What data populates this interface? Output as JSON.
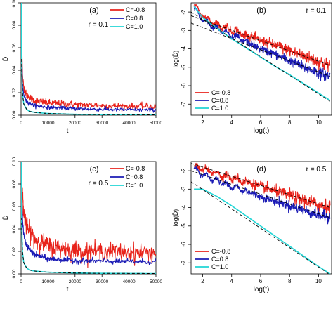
{
  "chart_data": [
    {
      "id": "a",
      "type": "line",
      "panel_label": "(a)",
      "annotation": "r = 0.1",
      "xlabel": "t",
      "ylabel": "D̄",
      "scale": "linear",
      "xlim": [
        0,
        50000
      ],
      "ylim": [
        0,
        0.1
      ],
      "x_ticks": [
        0,
        10000,
        20000,
        30000,
        40000,
        50000
      ],
      "x_tick_labels": [
        "0",
        "10000",
        "20000",
        "30000",
        "40000",
        "50000"
      ],
      "y_ticks": [
        0.0,
        0.02,
        0.04,
        0.06,
        0.08,
        0.1
      ],
      "y_tick_labels": [
        "0.00",
        "0.02",
        "0.04",
        "0.06",
        "0.08",
        "0.10"
      ],
      "legend_position": "top-right",
      "series": [
        {
          "name": "C=-0.8",
          "color": "#e8231b",
          "noise": 0.0015,
          "x": [
            100,
            500,
            1000,
            2000,
            5000,
            10000,
            20000,
            30000,
            40000,
            50000
          ],
          "y": [
            0.1,
            0.036,
            0.025,
            0.018,
            0.013,
            0.011,
            0.0095,
            0.0085,
            0.008,
            0.0075
          ]
        },
        {
          "name": "C=0.8",
          "color": "#1b1bb5",
          "noise": 0.0008,
          "x": [
            100,
            500,
            1000,
            2000,
            5000,
            10000,
            20000,
            30000,
            40000,
            50000
          ],
          "y": [
            0.1,
            0.028,
            0.018,
            0.012,
            0.0085,
            0.007,
            0.0058,
            0.0052,
            0.0048,
            0.0045
          ]
        },
        {
          "name": "C=1.0",
          "color": "#20d5d5",
          "noise": 0,
          "x": [
            50,
            200,
            500,
            1000,
            2000,
            3000,
            5000,
            10000,
            20000,
            30000,
            50000
          ],
          "y": [
            0.1,
            0.05,
            0.02,
            0.01,
            0.0055,
            0.0035,
            0.0025,
            0.0015,
            0.0008,
            0.0005,
            0.0003
          ]
        }
      ],
      "fit_lines": []
    },
    {
      "id": "b",
      "type": "line",
      "panel_label": "(b)",
      "annotation": "r = 0.1",
      "xlabel": "log(t)",
      "ylabel": "log(D̄)",
      "scale": "log-log",
      "xlim": [
        1.2,
        10.9
      ],
      "ylim": [
        -7.6,
        -1.5
      ],
      "x_ticks": [
        2,
        4,
        6,
        8,
        10
      ],
      "x_tick_labels": [
        "2",
        "4",
        "6",
        "8",
        "10"
      ],
      "y_ticks": [
        -7,
        -6,
        -5,
        -4,
        -3,
        -2
      ],
      "y_tick_labels": [
        "-7",
        "-6",
        "-5",
        "-4",
        "-3",
        "-2"
      ],
      "legend_position": "bottom-left",
      "series": [
        {
          "name": "C=-0.8",
          "color": "#e8231b",
          "noise": 0.1,
          "x": [
            1.4,
            2.0,
            3.0,
            4.0,
            5.0,
            6.0,
            7.0,
            8.0,
            9.0,
            10.0,
            10.8
          ],
          "y": [
            -1.6,
            -2.2,
            -2.7,
            -2.95,
            -3.25,
            -3.55,
            -3.8,
            -4.1,
            -4.4,
            -4.7,
            -4.9
          ]
        },
        {
          "name": "C=0.8",
          "color": "#1b1bb5",
          "noise": 0.08,
          "x": [
            1.4,
            2.0,
            3.0,
            4.0,
            5.0,
            6.0,
            7.0,
            8.0,
            9.0,
            10.0,
            10.8
          ],
          "y": [
            -1.8,
            -2.4,
            -2.9,
            -3.3,
            -3.6,
            -4.0,
            -4.3,
            -4.65,
            -5.0,
            -5.3,
            -5.5
          ]
        },
        {
          "name": "C=1.0",
          "color": "#20d5d5",
          "noise": 0,
          "x": [
            1.4,
            2.0,
            3.0,
            4.0,
            5.0,
            6.0,
            7.0,
            8.0,
            9.0,
            10.0,
            10.8
          ],
          "y": [
            -1.7,
            -2.3,
            -2.9,
            -3.45,
            -3.95,
            -4.45,
            -4.95,
            -5.4,
            -5.9,
            -6.4,
            -6.8
          ]
        }
      ],
      "fit_lines": [
        {
          "x": [
            1.2,
            10.8
          ],
          "y": [
            -2.2,
            -4.9
          ]
        },
        {
          "x": [
            1.2,
            10.8
          ],
          "y": [
            -2.6,
            -5.5
          ]
        },
        {
          "x": [
            1.2,
            10.8
          ],
          "y": [
            -2.0,
            -6.85
          ]
        }
      ]
    },
    {
      "id": "c",
      "type": "line",
      "panel_label": "(c)",
      "annotation": "r = 0.5",
      "xlabel": "t",
      "ylabel": "D̄",
      "scale": "linear",
      "xlim": [
        0,
        50000
      ],
      "ylim": [
        0,
        0.1
      ],
      "x_ticks": [
        0,
        10000,
        20000,
        30000,
        40000,
        50000
      ],
      "x_tick_labels": [
        "0",
        "10000",
        "20000",
        "30000",
        "40000",
        "50000"
      ],
      "y_ticks": [
        0.0,
        0.02,
        0.04,
        0.06,
        0.08,
        0.1
      ],
      "y_tick_labels": [
        "0.00",
        "0.02",
        "0.04",
        "0.06",
        "0.08",
        "0.10"
      ],
      "legend_position": "top-right",
      "series": [
        {
          "name": "C=-0.8",
          "color": "#e8231b",
          "noise": 0.004,
          "x": [
            100,
            500,
            1000,
            2000,
            5000,
            10000,
            20000,
            30000,
            40000,
            50000
          ],
          "y": [
            0.1,
            0.07,
            0.055,
            0.042,
            0.031,
            0.025,
            0.021,
            0.02,
            0.0192,
            0.0188
          ]
        },
        {
          "name": "C=0.8",
          "color": "#1b1bb5",
          "noise": 0.0012,
          "x": [
            100,
            500,
            1000,
            2000,
            5000,
            10000,
            20000,
            30000,
            40000,
            50000
          ],
          "y": [
            0.1,
            0.05,
            0.035,
            0.025,
            0.017,
            0.0135,
            0.0118,
            0.0112,
            0.011,
            0.0108
          ]
        },
        {
          "name": "C=1.0",
          "color": "#20d5d5",
          "noise": 0,
          "x": [
            50,
            200,
            500,
            1000,
            2000,
            3000,
            5000,
            10000,
            20000,
            30000,
            50000
          ],
          "y": [
            0.1,
            0.05,
            0.02,
            0.01,
            0.0055,
            0.0035,
            0.0025,
            0.0015,
            0.0008,
            0.0005,
            0.0003
          ]
        }
      ],
      "fit_lines": []
    },
    {
      "id": "d",
      "type": "line",
      "panel_label": "(d)",
      "annotation": "r = 0.5",
      "xlabel": "log(t)",
      "ylabel": "log(D̄)",
      "scale": "log-log",
      "xlim": [
        1.2,
        10.9
      ],
      "ylim": [
        -7.6,
        -1.5
      ],
      "x_ticks": [
        2,
        4,
        6,
        8,
        10
      ],
      "x_tick_labels": [
        "2",
        "4",
        "6",
        "8",
        "10"
      ],
      "y_ticks": [
        -7,
        -6,
        -5,
        -4,
        -3,
        -2
      ],
      "y_tick_labels": [
        "-7",
        "-6",
        "-5",
        "-4",
        "-3",
        "-2"
      ],
      "legend_position": "bottom-left",
      "series": [
        {
          "name": "C=-0.8",
          "color": "#e8231b",
          "noise": 0.1,
          "x": [
            1.4,
            2.0,
            3.0,
            4.0,
            5.0,
            6.0,
            7.0,
            8.0,
            9.0,
            10.0,
            10.8
          ],
          "y": [
            -1.8,
            -1.9,
            -2.15,
            -2.4,
            -2.6,
            -2.85,
            -3.1,
            -3.35,
            -3.6,
            -3.85,
            -4.0
          ]
        },
        {
          "name": "C=0.8",
          "color": "#1b1bb5",
          "noise": 0.08,
          "x": [
            1.4,
            2.0,
            3.0,
            4.0,
            5.0,
            6.0,
            7.0,
            8.0,
            9.0,
            10.0,
            10.8
          ],
          "y": [
            -1.9,
            -2.2,
            -2.55,
            -2.85,
            -3.1,
            -3.4,
            -3.65,
            -3.9,
            -4.15,
            -4.4,
            -4.55
          ]
        },
        {
          "name": "C=1.0",
          "color": "#20d5d5",
          "noise": 0,
          "x": [
            1.4,
            2.0,
            3.0,
            4.0,
            5.0,
            6.0,
            7.0,
            8.0,
            9.0,
            10.0,
            10.8
          ],
          "y": [
            -3.0,
            -3.0,
            -3.4,
            -3.9,
            -4.45,
            -5.0,
            -5.55,
            -6.1,
            -6.65,
            -7.2,
            -7.6
          ]
        }
      ],
      "fit_lines": [
        {
          "x": [
            1.2,
            10.8
          ],
          "y": [
            -1.6,
            -4.0
          ]
        },
        {
          "x": [
            1.2,
            10.8
          ],
          "y": [
            -2.0,
            -4.55
          ]
        },
        {
          "x": [
            1.2,
            10.8
          ],
          "y": [
            -2.6,
            -7.65
          ]
        }
      ]
    }
  ]
}
